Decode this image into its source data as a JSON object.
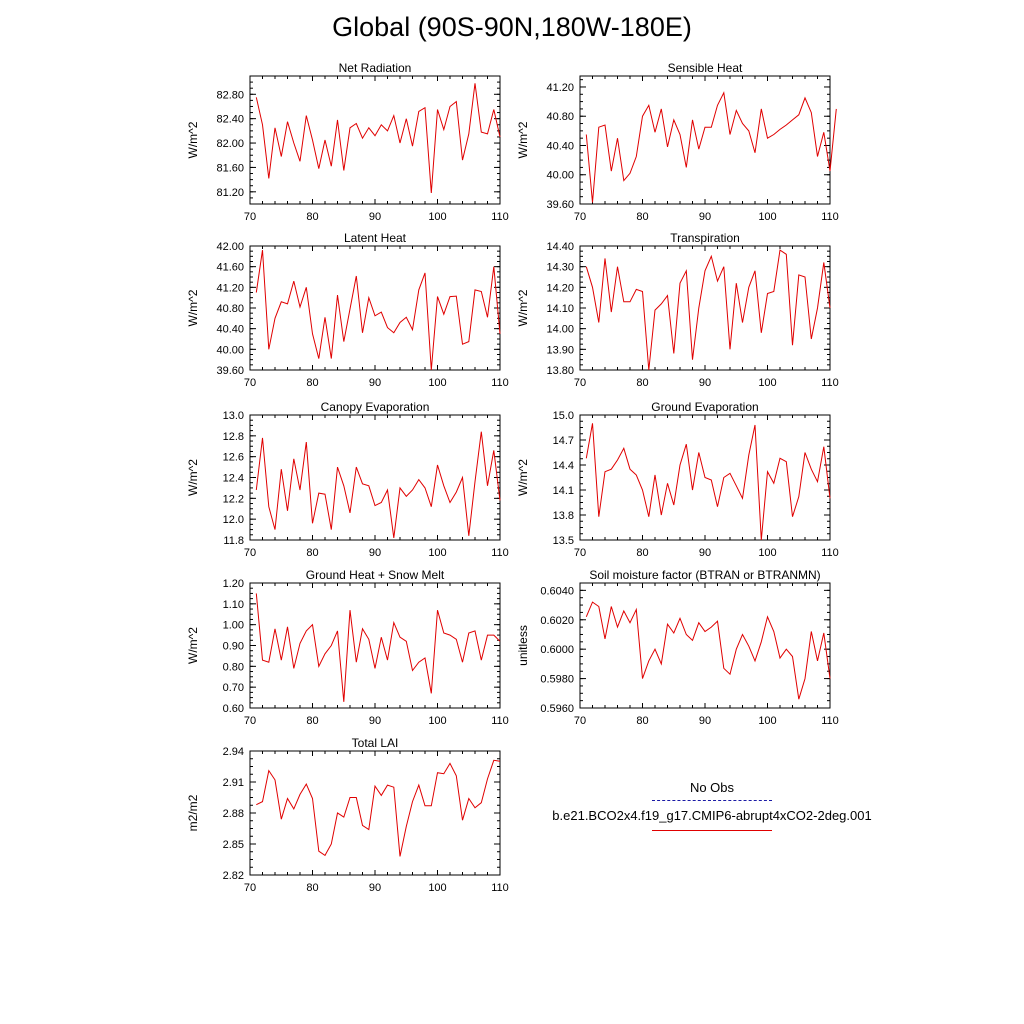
{
  "page": {
    "title": "Global (90S-90N,180W-180E)"
  },
  "legend": {
    "entries": [
      {
        "label": "No Obs",
        "color": "#1a1aa6",
        "style": "dashed"
      },
      {
        "label": "b.e21.BCO2x4.f19_g17.CMIP6-abrupt4xCO2-2deg.001",
        "color": "#e00000",
        "style": "solid"
      }
    ]
  },
  "series_color": "#e00000",
  "chart_data": [
    {
      "type": "line",
      "title": "Net Radiation",
      "ylabel": "W/m^2",
      "xlim": [
        70,
        110
      ],
      "ylim": [
        81.0,
        83.1
      ],
      "xticks": [
        70,
        80,
        90,
        100,
        110
      ],
      "xtick_labels": [
        "70",
        "80",
        "90",
        "100",
        "110"
      ],
      "yticks": [
        81.2,
        81.6,
        82.0,
        82.4,
        82.8
      ],
      "ytick_labels": [
        "81.20",
        "81.60",
        "82.00",
        "82.40",
        "82.80"
      ],
      "x0": 71,
      "values": [
        82.75,
        82.3,
        81.42,
        82.25,
        81.78,
        82.35,
        82.0,
        81.7,
        82.45,
        82.05,
        81.58,
        82.05,
        81.62,
        82.38,
        81.55,
        82.25,
        82.32,
        82.08,
        82.25,
        82.12,
        82.3,
        82.2,
        82.45,
        82.0,
        82.4,
        81.95,
        82.52,
        82.58,
        81.18,
        82.55,
        82.22,
        82.6,
        82.68,
        81.72,
        82.15,
        82.98,
        82.18,
        82.15,
        82.55,
        82.1
      ]
    },
    {
      "type": "line",
      "title": "Sensible Heat",
      "ylabel": "W/m^2",
      "xlim": [
        70,
        110
      ],
      "ylim": [
        39.6,
        41.35
      ],
      "xticks": [
        70,
        80,
        90,
        100,
        110
      ],
      "xtick_labels": [
        "70",
        "80",
        "90",
        "100",
        "110"
      ],
      "yticks": [
        39.6,
        40.0,
        40.4,
        40.8,
        41.2
      ],
      "ytick_labels": [
        "39.60",
        "40.00",
        "40.40",
        "40.80",
        "41.20"
      ],
      "x0": 71,
      "values": [
        40.55,
        39.62,
        40.65,
        40.68,
        40.05,
        40.5,
        39.92,
        40.02,
        40.25,
        40.8,
        40.95,
        40.58,
        40.9,
        40.38,
        40.75,
        40.55,
        40.1,
        40.75,
        40.35,
        40.65,
        40.65,
        40.95,
        41.12,
        40.55,
        40.88,
        40.7,
        40.6,
        40.3,
        40.9,
        40.5,
        40.55,
        40.62,
        40.68,
        40.75,
        40.82,
        41.05,
        40.85,
        40.25,
        40.58,
        40.05,
        40.9
      ]
    },
    {
      "type": "line",
      "title": "Latent Heat",
      "ylabel": "W/m^2",
      "xlim": [
        70,
        110
      ],
      "ylim": [
        39.6,
        42.0
      ],
      "xticks": [
        70,
        80,
        90,
        100,
        110
      ],
      "xtick_labels": [
        "70",
        "80",
        "90",
        "100",
        "110"
      ],
      "yticks": [
        39.6,
        40.0,
        40.4,
        40.8,
        41.2,
        41.6,
        42.0
      ],
      "ytick_labels": [
        "39.60",
        "40.00",
        "40.40",
        "40.80",
        "41.20",
        "41.60",
        "42.00"
      ],
      "x0": 71,
      "values": [
        41.1,
        41.92,
        40.0,
        40.6,
        40.92,
        40.88,
        41.32,
        40.82,
        41.2,
        40.3,
        39.82,
        40.62,
        39.82,
        41.05,
        40.15,
        40.78,
        41.42,
        40.32,
        41.0,
        40.65,
        40.72,
        40.42,
        40.32,
        40.52,
        40.62,
        40.38,
        41.15,
        41.48,
        39.6,
        41.02,
        40.68,
        41.02,
        41.03,
        40.1,
        40.15,
        41.15,
        41.12,
        40.62,
        41.6,
        40.3
      ]
    },
    {
      "type": "line",
      "title": "Transpiration",
      "ylabel": "W/m^2",
      "xlim": [
        70,
        110
      ],
      "ylim": [
        13.8,
        14.4
      ],
      "xticks": [
        70,
        80,
        90,
        100,
        110
      ],
      "xtick_labels": [
        "70",
        "80",
        "90",
        "100",
        "110"
      ],
      "yticks": [
        13.8,
        13.9,
        14.0,
        14.1,
        14.2,
        14.3,
        14.4
      ],
      "ytick_labels": [
        "13.80",
        "13.90",
        "14.00",
        "14.10",
        "14.20",
        "14.30",
        "14.40"
      ],
      "x0": 71,
      "values": [
        14.3,
        14.2,
        14.03,
        14.34,
        14.08,
        14.3,
        14.13,
        14.13,
        14.19,
        14.18,
        13.8,
        14.09,
        14.12,
        14.16,
        13.88,
        14.22,
        14.28,
        13.85,
        14.1,
        14.28,
        14.35,
        14.23,
        14.3,
        13.9,
        14.22,
        14.03,
        14.2,
        14.28,
        13.98,
        14.17,
        14.18,
        14.38,
        14.36,
        13.92,
        14.26,
        14.25,
        13.95,
        14.1,
        14.32,
        14.1
      ]
    },
    {
      "type": "line",
      "title": "Canopy Evaporation",
      "ylabel": "W/m^2",
      "xlim": [
        70,
        110
      ],
      "ylim": [
        11.8,
        13.0
      ],
      "xticks": [
        70,
        80,
        90,
        100,
        110
      ],
      "xtick_labels": [
        "70",
        "80",
        "90",
        "100",
        "110"
      ],
      "yticks": [
        11.8,
        12.0,
        12.2,
        12.4,
        12.6,
        12.8,
        13.0
      ],
      "ytick_labels": [
        "11.8",
        "12.0",
        "12.2",
        "12.4",
        "12.6",
        "12.8",
        "13.0"
      ],
      "x0": 71,
      "values": [
        12.28,
        12.78,
        12.12,
        11.9,
        12.48,
        12.08,
        12.58,
        12.28,
        12.74,
        11.96,
        12.25,
        12.24,
        11.9,
        12.5,
        12.32,
        12.06,
        12.5,
        12.34,
        12.32,
        12.13,
        12.16,
        12.28,
        11.82,
        12.3,
        12.22,
        12.28,
        12.38,
        12.3,
        12.12,
        12.52,
        12.32,
        12.16,
        12.26,
        12.4,
        11.84,
        12.36,
        12.84,
        12.32,
        12.66,
        12.18
      ]
    },
    {
      "type": "line",
      "title": "Ground Evaporation",
      "ylabel": "W/m^2",
      "xlim": [
        70,
        110
      ],
      "ylim": [
        13.5,
        15.0
      ],
      "xticks": [
        70,
        80,
        90,
        100,
        110
      ],
      "xtick_labels": [
        "70",
        "80",
        "90",
        "100",
        "110"
      ],
      "yticks": [
        13.5,
        13.8,
        14.1,
        14.4,
        14.7,
        15.0
      ],
      "ytick_labels": [
        "13.5",
        "13.8",
        "14.1",
        "14.4",
        "14.7",
        "15.0"
      ],
      "x0": 71,
      "values": [
        14.48,
        14.9,
        13.78,
        14.32,
        14.35,
        14.46,
        14.6,
        14.35,
        14.28,
        14.1,
        13.78,
        14.28,
        13.8,
        14.18,
        13.92,
        14.4,
        14.65,
        14.1,
        14.55,
        14.25,
        14.22,
        13.9,
        14.25,
        14.3,
        14.15,
        14.0,
        14.52,
        14.88,
        13.5,
        14.32,
        14.18,
        14.48,
        14.44,
        13.78,
        14.02,
        14.55,
        14.35,
        14.2,
        14.62,
        14.0
      ]
    },
    {
      "type": "line",
      "title": "Ground Heat + Snow Melt",
      "ylabel": "W/m^2",
      "xlim": [
        70,
        110
      ],
      "ylim": [
        0.6,
        1.2
      ],
      "xticks": [
        70,
        80,
        90,
        100,
        110
      ],
      "xtick_labels": [
        "70",
        "80",
        "90",
        "100",
        "110"
      ],
      "yticks": [
        0.6,
        0.7,
        0.8,
        0.9,
        1.0,
        1.1,
        1.2
      ],
      "ytick_labels": [
        "0.60",
        "0.70",
        "0.80",
        "0.90",
        "1.00",
        "1.10",
        "1.20"
      ],
      "x0": 71,
      "values": [
        1.15,
        0.83,
        0.82,
        0.98,
        0.83,
        0.99,
        0.79,
        0.91,
        0.97,
        1.0,
        0.8,
        0.86,
        0.9,
        0.97,
        0.63,
        1.07,
        0.82,
        0.98,
        0.93,
        0.79,
        0.94,
        0.83,
        1.01,
        0.94,
        0.92,
        0.78,
        0.82,
        0.84,
        0.67,
        1.07,
        0.96,
        0.95,
        0.93,
        0.82,
        0.96,
        0.97,
        0.83,
        0.95,
        0.95,
        0.92
      ]
    },
    {
      "type": "line",
      "title": "Soil moisture factor (BTRAN or BTRANMN)",
      "ylabel": "unitless",
      "xlim": [
        70,
        110
      ],
      "ylim": [
        0.596,
        0.6045
      ],
      "xticks": [
        70,
        80,
        90,
        100,
        110
      ],
      "xtick_labels": [
        "70",
        "80",
        "90",
        "100",
        "110"
      ],
      "yticks": [
        0.596,
        0.598,
        0.6,
        0.602,
        0.604
      ],
      "ytick_labels": [
        "0.5960",
        "0.5980",
        "0.6000",
        "0.6020",
        "0.6040"
      ],
      "x0": 71,
      "values": [
        0.6022,
        0.6032,
        0.6029,
        0.6007,
        0.6029,
        0.6015,
        0.6026,
        0.6018,
        0.6027,
        0.598,
        0.5992,
        0.6,
        0.599,
        0.6017,
        0.6011,
        0.6021,
        0.601,
        0.6006,
        0.6018,
        0.6012,
        0.6015,
        0.6019,
        0.5987,
        0.5983,
        0.6,
        0.601,
        0.6002,
        0.5992,
        0.6005,
        0.6022,
        0.6012,
        0.5994,
        0.6,
        0.5995,
        0.5966,
        0.598,
        0.6012,
        0.5992,
        0.6011,
        0.598
      ]
    },
    {
      "type": "line",
      "title": "Total LAI",
      "ylabel": "m2/m2",
      "xlim": [
        70,
        110
      ],
      "ylim": [
        2.82,
        2.94
      ],
      "xticks": [
        70,
        80,
        90,
        100,
        110
      ],
      "xtick_labels": [
        "70",
        "80",
        "90",
        "100",
        "110"
      ],
      "yticks": [
        2.82,
        2.85,
        2.88,
        2.91,
        2.94
      ],
      "ytick_labels": [
        "2.82",
        "2.85",
        "2.88",
        "2.91",
        "2.94"
      ],
      "x0": 71,
      "values": [
        2.888,
        2.891,
        2.921,
        2.912,
        2.874,
        2.894,
        2.884,
        2.898,
        2.908,
        2.894,
        2.843,
        2.839,
        2.85,
        2.88,
        2.876,
        2.895,
        2.895,
        2.868,
        2.864,
        2.906,
        2.897,
        2.907,
        2.905,
        2.838,
        2.867,
        2.891,
        2.907,
        2.887,
        2.887,
        2.919,
        2.918,
        2.928,
        2.916,
        2.873,
        2.894,
        2.885,
        2.89,
        2.913,
        2.931,
        2.93
      ]
    }
  ]
}
